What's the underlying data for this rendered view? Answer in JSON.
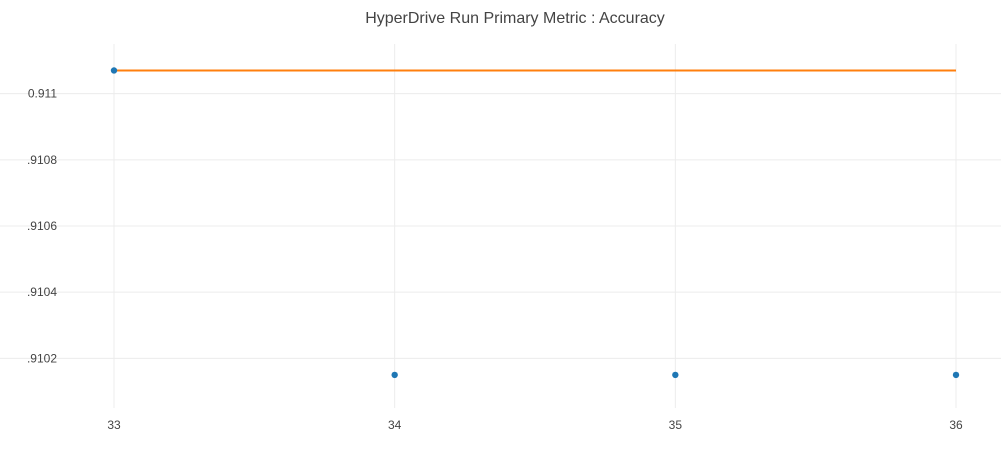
{
  "chart_data": {
    "type": "line",
    "title": "HyperDrive Run Primary Metric : Accuracy",
    "xlabel": "",
    "ylabel": "",
    "x_ticks": [
      "33",
      "34",
      "35",
      "36"
    ],
    "y_ticks": [
      {
        "value": 0.911,
        "label": "0.911"
      },
      {
        "value": 0.9108,
        "label": ".9108"
      },
      {
        "value": 0.9106,
        "label": ".9106"
      },
      {
        "value": 0.9104,
        "label": ".9104"
      },
      {
        "value": 0.9102,
        "label": ".9102"
      }
    ],
    "xlim": [
      33,
      36
    ],
    "ylim": [
      0.91005,
      0.91115
    ],
    "grid": true,
    "series": [
      {
        "kind": "scatter",
        "color": "#1f77b4",
        "x": [
          33,
          34,
          35,
          36
        ],
        "y": [
          0.91107,
          0.91015,
          0.91015,
          0.91015
        ]
      },
      {
        "kind": "line",
        "color": "#ff7f0e",
        "x": [
          33,
          34,
          35,
          36
        ],
        "y": [
          0.91107,
          0.91107,
          0.91107,
          0.91107
        ]
      }
    ]
  }
}
